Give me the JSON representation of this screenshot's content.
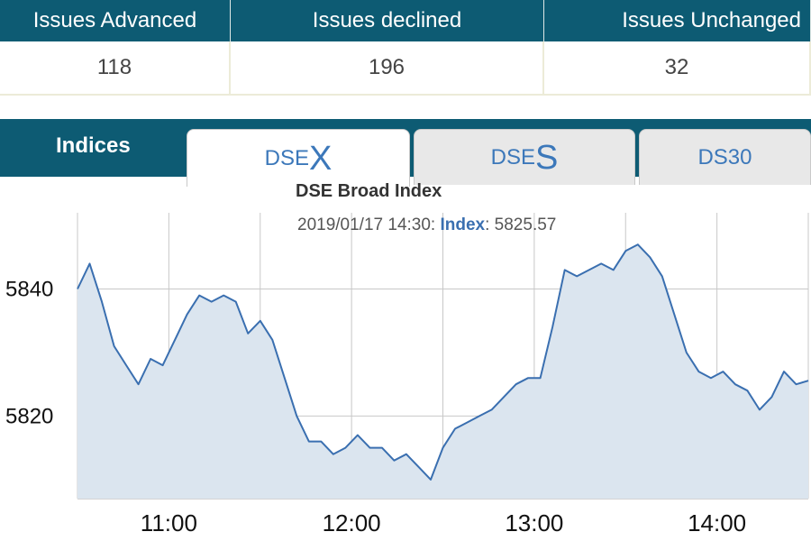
{
  "summary": {
    "headers": [
      "Issues Advanced",
      "Issues declined",
      "Issues Unchanged"
    ],
    "values": [
      "118",
      "196",
      "32"
    ]
  },
  "tabs": {
    "section_label": "Indices",
    "items": [
      {
        "prefix": "DSE",
        "suffix": "X",
        "active": true
      },
      {
        "prefix": "DSE",
        "suffix": "S",
        "active": false
      },
      {
        "label": "DS30",
        "active": false
      }
    ]
  },
  "colors": {
    "header_bg": "#0d5b73",
    "line": "#3a6fb0",
    "area": "#dbe5ef",
    "grid": "#c8c8c8",
    "tab_text": "#3c78ba"
  },
  "chart_data": {
    "type": "area",
    "title": "DSE Broad Index",
    "subtitle": {
      "time": "2019/01/17 14:30",
      "key": "Index",
      "value": "5825.57"
    },
    "xlabel": "",
    "ylabel": "",
    "x_ticks": [
      "11:00",
      "12:00",
      "13:00",
      "14:00"
    ],
    "y_ticks": [
      5820,
      5840
    ],
    "xlim": [
      "10:30",
      "14:30"
    ],
    "ylim": [
      5807,
      5852
    ],
    "grid": true,
    "series": [
      {
        "x": [
          "10:30",
          "10:34",
          "10:38",
          "10:42",
          "10:46",
          "10:50",
          "10:54",
          "10:58",
          "11:02",
          "11:06",
          "11:10",
          "11:14",
          "11:18",
          "11:22",
          "11:26",
          "11:30",
          "11:34",
          "11:38",
          "11:42",
          "11:46",
          "11:50",
          "11:54",
          "11:58",
          "12:02",
          "12:06",
          "12:10",
          "12:14",
          "12:18",
          "12:22",
          "12:26",
          "12:30",
          "12:34",
          "12:38",
          "12:42",
          "12:46",
          "12:50",
          "12:54",
          "12:58",
          "13:02",
          "13:06",
          "13:10",
          "13:14",
          "13:18",
          "13:22",
          "13:26",
          "13:30",
          "13:34",
          "13:38",
          "13:42",
          "13:46",
          "13:50",
          "13:54",
          "13:58",
          "14:02",
          "14:06",
          "14:10",
          "14:14",
          "14:18",
          "14:22",
          "14:26",
          "14:30"
        ],
        "y": [
          5840,
          5844,
          5838,
          5831,
          5828,
          5825,
          5829,
          5828,
          5832,
          5836,
          5839,
          5838,
          5839,
          5838,
          5833,
          5835,
          5832,
          5826,
          5820,
          5816,
          5816,
          5814,
          5815,
          5817,
          5815,
          5815,
          5813,
          5814,
          5812,
          5810,
          5815,
          5818,
          5819,
          5820,
          5821,
          5823,
          5825,
          5826,
          5826,
          5834,
          5843,
          5842,
          5843,
          5844,
          5843,
          5846,
          5847,
          5845,
          5842,
          5836,
          5830,
          5827,
          5826,
          5827,
          5825,
          5824,
          5821,
          5823,
          5827,
          5825,
          5825.57
        ]
      }
    ]
  }
}
